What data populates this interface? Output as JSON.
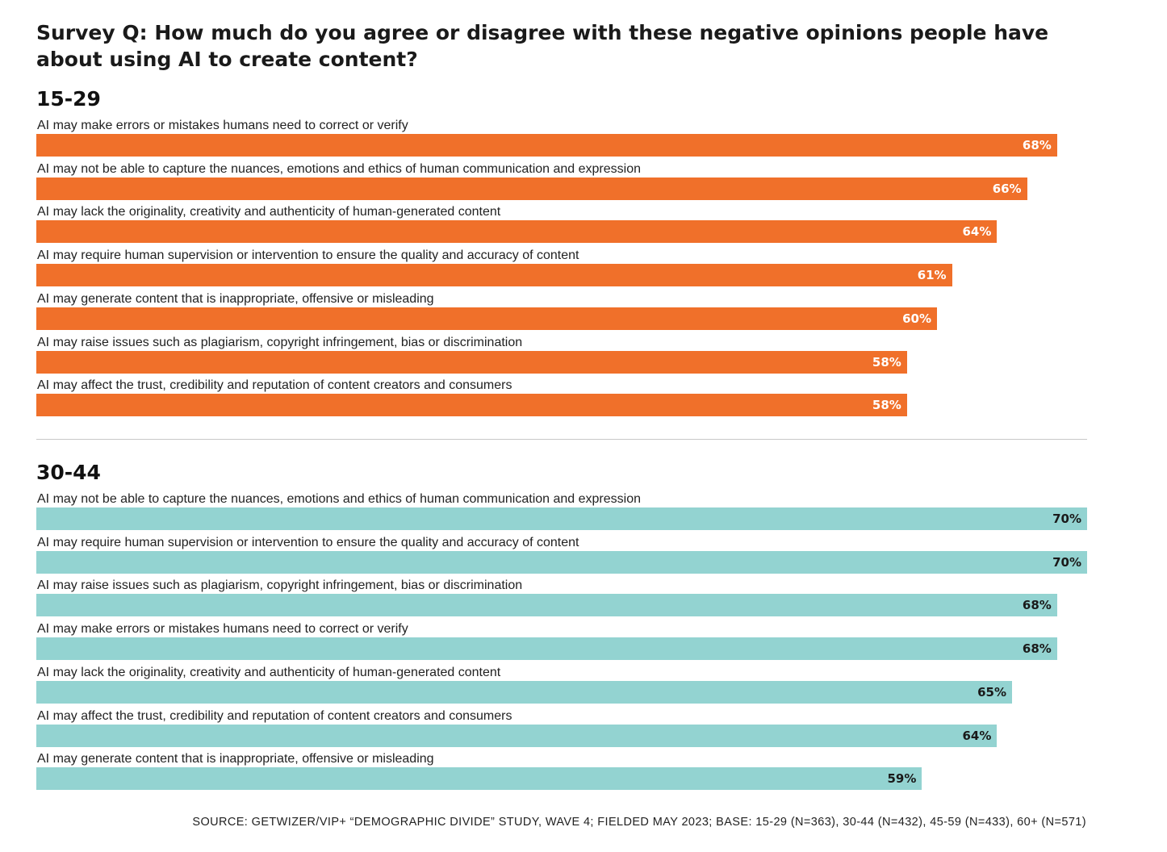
{
  "title": "Survey Q: How much do you agree or disagree with these negative opinions people have about using AI to create content?",
  "source": "SOURCE: GETWIZER/VIP+ “DEMOGRAPHIC DIVIDE” STUDY, WAVE 4; FIELDED MAY 2023; BASE: 15-29 (N=363), 30-44 (N=432), 45-59 (N=433), 60+ (N=571)",
  "colors": {
    "panel_15_29": "#f0702a",
    "panel_30_44": "#93d3d1",
    "value_on_orange": "#ffffff",
    "value_on_teal": "#1a1a1a"
  },
  "chart_data": [
    {
      "type": "bar",
      "orientation": "horizontal",
      "title": "15-29",
      "xlim": [
        0,
        70
      ],
      "categories": [
        "AI may make errors or mistakes humans need to correct or verify",
        "AI may not be able to capture the nuances, emotions and ethics of human communication and expression",
        "AI may lack the originality, creativity and authenticity of human-generated content",
        "AI may require human supervision or intervention to ensure the quality and accuracy of content",
        "AI may generate content that is inappropriate, offensive or misleading",
        "AI may raise issues such as plagiarism, copyright infringement, bias or discrimination",
        "AI may affect the trust, credibility and reputation of content creators and consumers"
      ],
      "values": [
        68,
        66,
        64,
        61,
        60,
        58,
        58
      ],
      "labels": [
        "68%",
        "66%",
        "64%",
        "61%",
        "60%",
        "58%",
        "58%"
      ]
    },
    {
      "type": "bar",
      "orientation": "horizontal",
      "title": "30-44",
      "xlim": [
        0,
        70
      ],
      "categories": [
        "AI may not be able to capture the nuances, emotions and ethics of human communication and expression",
        "AI may require human supervision or intervention to ensure the quality and accuracy of content",
        "AI may raise issues such as plagiarism, copyright infringement, bias or discrimination",
        "AI may make errors or mistakes humans need to correct or verify",
        "AI may lack the originality, creativity and authenticity of human-generated content",
        "AI may affect the trust, credibility and reputation of content creators and consumers",
        "AI may generate content that is inappropriate, offensive or misleading"
      ],
      "values": [
        70,
        70,
        68,
        68,
        65,
        64,
        59
      ],
      "labels": [
        "70%",
        "70%",
        "68%",
        "68%",
        "65%",
        "64%",
        "59%"
      ]
    }
  ]
}
